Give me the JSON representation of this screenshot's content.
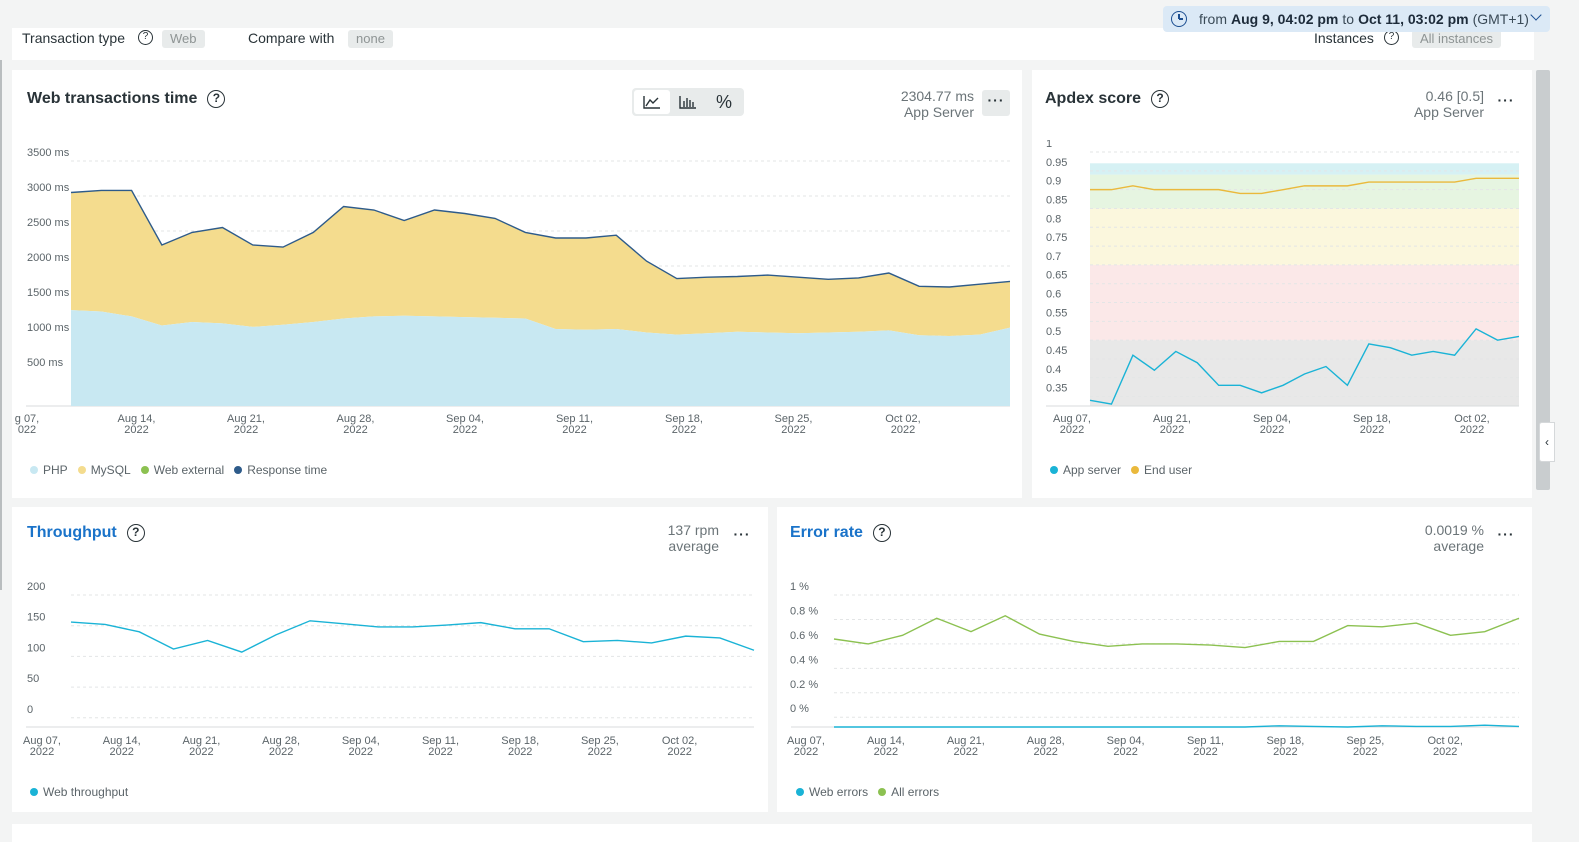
{
  "filters": {
    "transaction_type_label": "Transaction type",
    "transaction_type_value": "Web",
    "compare_label": "Compare with",
    "compare_value": "none",
    "instances_label": "Instances",
    "instances_value": "All instances"
  },
  "timepicker": {
    "from_word": "from",
    "from": "Aug 9, 04:02 pm",
    "to_word": "to",
    "to": "Oct 11, 03:02 pm",
    "tz": "(GMT+1)"
  },
  "icons": {
    "clock": "clock-icon",
    "help": "question-circle-icon",
    "more": "ellipsis-icon",
    "area": "area-chart-icon",
    "bars": "bar-chart-icon",
    "percent": "percent-icon",
    "collapse": "chevron-left-icon"
  },
  "panels": {
    "web": {
      "title": "Web transactions time",
      "value": "2304.77 ms",
      "sub": "App Server",
      "more": "···",
      "view_percent": "%"
    },
    "apdex": {
      "title": "Apdex score",
      "value": "0.46  [0.5]",
      "sub": "App Server",
      "more": "···"
    },
    "throughput": {
      "title": "Throughput",
      "value": "137 rpm",
      "sub": "average",
      "more": "···"
    },
    "error": {
      "title": "Error rate",
      "value": "0.0019 %",
      "sub": "average",
      "more": "···"
    }
  },
  "chart_data": [
    {
      "id": "web",
      "type": "area",
      "title": "Web transactions time",
      "x": [
        "Aug 07",
        "Aug 09",
        "Aug 11",
        "Aug 13",
        "Aug 15",
        "Aug 17",
        "Aug 19",
        "Aug 21",
        "Aug 23",
        "Aug 25",
        "Aug 27",
        "Aug 29",
        "Aug 31",
        "Sep 02",
        "Sep 04",
        "Sep 06",
        "Sep 08",
        "Sep 10",
        "Sep 12",
        "Sep 14",
        "Sep 16",
        "Sep 18",
        "Sep 20",
        "Sep 22",
        "Sep 24",
        "Sep 26",
        "Sep 28",
        "Sep 30",
        "Oct 02",
        "Oct 04",
        "Oct 06",
        "Oct 08"
      ],
      "y_ticks": [
        "500 ms",
        "1000 ms",
        "1500 ms",
        "2000 ms",
        "2500 ms",
        "3000 ms",
        "3500 ms"
      ],
      "ylim": [
        0,
        3500
      ],
      "x_tick_labels": [
        [
          "g 07,",
          "022"
        ],
        [
          "Aug 14,",
          "2022"
        ],
        [
          "Aug 21,",
          "2022"
        ],
        [
          "Aug 28,",
          "2022"
        ],
        [
          "Sep 04,",
          "2022"
        ],
        [
          "Sep 11,",
          "2022"
        ],
        [
          "Sep 18,",
          "2022"
        ],
        [
          "Sep 25,",
          "2022"
        ],
        [
          "Oct 02,",
          "2022"
        ]
      ],
      "series": [
        {
          "name": "PHP",
          "color": "#c8e8f2",
          "values": [
            1370,
            1350,
            1280,
            1150,
            1200,
            1180,
            1130,
            1160,
            1200,
            1250,
            1280,
            1290,
            1280,
            1270,
            1260,
            1250,
            1100,
            1090,
            1100,
            1050,
            1020,
            1040,
            1060,
            1050,
            1040,
            1050,
            1060,
            1080,
            1010,
            1000,
            1020,
            1120
          ]
        },
        {
          "name": "MySQL",
          "color": "#f4dc8e",
          "values": [
            1680,
            1730,
            1800,
            1150,
            1280,
            1370,
            1170,
            1110,
            1280,
            1600,
            1520,
            1360,
            1520,
            1480,
            1420,
            1230,
            1300,
            1310,
            1340,
            1020,
            800,
            800,
            790,
            820,
            800,
            760,
            770,
            820,
            700,
            700,
            720,
            660
          ]
        },
        {
          "name": "Web external",
          "color": "#8cc151",
          "values": [
            0,
            0,
            0,
            0,
            0,
            0,
            0,
            0,
            0,
            0,
            0,
            0,
            0,
            0,
            0,
            0,
            0,
            0,
            0,
            0,
            0,
            0,
            0,
            0,
            0,
            0,
            0,
            0,
            0,
            0,
            0,
            0
          ]
        },
        {
          "name": "Response time",
          "color": "#2e5b8a",
          "values": [
            3050,
            3080,
            3080,
            2300,
            2480,
            2550,
            2300,
            2270,
            2480,
            2850,
            2800,
            2650,
            2800,
            2750,
            2680,
            2480,
            2400,
            2400,
            2440,
            2070,
            1820,
            1840,
            1850,
            1870,
            1840,
            1810,
            1830,
            1900,
            1710,
            1700,
            1740,
            1780
          ]
        }
      ]
    },
    {
      "id": "apdex",
      "type": "line",
      "title": "Apdex score",
      "y_ticks": [
        "0.35",
        "0.4",
        "0.45",
        "0.5",
        "0.55",
        "0.6",
        "0.65",
        "0.7",
        "0.75",
        "0.8",
        "0.85",
        "0.9",
        "0.95",
        "1"
      ],
      "ylim": [
        0.325,
        1.0
      ],
      "x_tick_labels": [
        [
          "Aug 07,",
          "2022"
        ],
        [
          "Aug 21,",
          "2022"
        ],
        [
          "Sep 04,",
          "2022"
        ],
        [
          "Sep 18,",
          "2022"
        ],
        [
          "Oct 02,",
          "2022"
        ]
      ],
      "bands": [
        {
          "from": 0.325,
          "to": 0.5,
          "color": "#e8e8e8"
        },
        {
          "from": 0.5,
          "to": 0.7,
          "color": "#fbe8e8"
        },
        {
          "from": 0.7,
          "to": 0.85,
          "color": "#fbf7dd"
        },
        {
          "from": 0.85,
          "to": 0.94,
          "color": "#e6f5e1"
        },
        {
          "from": 0.94,
          "to": 0.97,
          "color": "#d6f1f4"
        }
      ],
      "series": [
        {
          "name": "App server",
          "color": "#1ab3d6",
          "values": [
            0.34,
            0.33,
            0.46,
            0.42,
            0.47,
            0.44,
            0.38,
            0.38,
            0.36,
            0.38,
            0.41,
            0.43,
            0.38,
            0.49,
            0.48,
            0.46,
            0.47,
            0.46,
            0.53,
            0.5,
            0.51
          ]
        },
        {
          "name": "End user",
          "color": "#eab93c",
          "values": [
            0.9,
            0.9,
            0.91,
            0.9,
            0.9,
            0.9,
            0.9,
            0.89,
            0.89,
            0.9,
            0.91,
            0.91,
            0.91,
            0.92,
            0.92,
            0.92,
            0.92,
            0.92,
            0.93,
            0.93,
            0.93
          ]
        }
      ]
    },
    {
      "id": "throughput",
      "type": "line",
      "title": "Throughput",
      "y_ticks": [
        "0",
        "50",
        "100",
        "150",
        "200"
      ],
      "ylim": [
        -15,
        200
      ],
      "x_tick_labels": [
        [
          "Aug 07,",
          "2022"
        ],
        [
          "Aug 14,",
          "2022"
        ],
        [
          "Aug 21,",
          "2022"
        ],
        [
          "Aug 28,",
          "2022"
        ],
        [
          "Sep 04,",
          "2022"
        ],
        [
          "Sep 11,",
          "2022"
        ],
        [
          "Sep 18,",
          "2022"
        ],
        [
          "Sep 25,",
          "2022"
        ],
        [
          "Oct 02,",
          "2022"
        ]
      ],
      "series": [
        {
          "name": "Web throughput",
          "color": "#1ab3d6",
          "values": [
            156,
            152,
            140,
            112,
            126,
            107,
            135,
            158,
            153,
            148,
            148,
            151,
            155,
            145,
            145,
            124,
            126,
            122,
            133,
            130,
            110
          ]
        }
      ]
    },
    {
      "id": "error",
      "type": "line",
      "title": "Error rate",
      "y_ticks": [
        "0 %",
        "0.2 %",
        "0.4 %",
        "0.6 %",
        "0.8 %",
        "1 %"
      ],
      "ylim": [
        -0.08,
        1.0
      ],
      "x_tick_labels": [
        [
          "Aug 07,",
          "2022"
        ],
        [
          "Aug 14,",
          "2022"
        ],
        [
          "Aug 21,",
          "2022"
        ],
        [
          "Aug 28,",
          "2022"
        ],
        [
          "Sep 04,",
          "2022"
        ],
        [
          "Sep 11,",
          "2022"
        ],
        [
          "Sep 18,",
          "2022"
        ],
        [
          "Sep 25,",
          "2022"
        ],
        [
          "Oct 02,",
          "2022"
        ]
      ],
      "series": [
        {
          "name": "Web errors",
          "color": "#1ab3d6",
          "values": [
            -0.08,
            -0.08,
            -0.08,
            -0.08,
            -0.08,
            -0.08,
            -0.08,
            -0.08,
            -0.08,
            -0.08,
            -0.08,
            -0.08,
            -0.08,
            -0.07,
            -0.075,
            -0.08,
            -0.07,
            -0.075,
            -0.075,
            -0.065,
            -0.075
          ]
        },
        {
          "name": "All errors",
          "color": "#8cc151",
          "values": [
            0.64,
            0.6,
            0.67,
            0.81,
            0.7,
            0.83,
            0.68,
            0.62,
            0.58,
            0.6,
            0.6,
            0.59,
            0.57,
            0.62,
            0.62,
            0.75,
            0.74,
            0.77,
            0.67,
            0.7,
            0.81
          ]
        }
      ]
    }
  ]
}
